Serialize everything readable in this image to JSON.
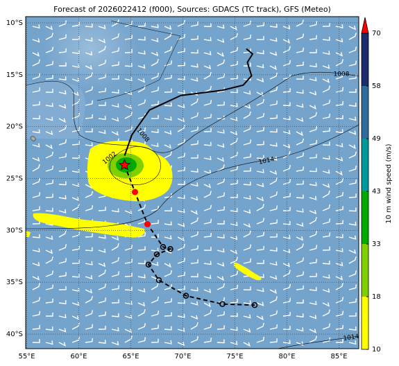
{
  "chart_data": {
    "type": "map",
    "title": "Forecast of 2026022412 (f000), Sources: GDACS (TC track), GFS (Meteo)",
    "xlim": [
      54.9,
      86.9
    ],
    "ylim": [
      -41.4,
      -9.4
    ],
    "xticks": [
      {
        "value": 55,
        "label": "55°E"
      },
      {
        "value": 60,
        "label": "60°E"
      },
      {
        "value": 65,
        "label": "65°E"
      },
      {
        "value": 70,
        "label": "70°E"
      },
      {
        "value": 75,
        "label": "75°E"
      },
      {
        "value": 80,
        "label": "80°E"
      },
      {
        "value": 85,
        "label": "85°E"
      }
    ],
    "yticks": [
      {
        "value": -10,
        "label": "10°S"
      },
      {
        "value": -15,
        "label": "15°S"
      },
      {
        "value": -20,
        "label": "20°S"
      },
      {
        "value": -25,
        "label": "25°S"
      },
      {
        "value": -30,
        "label": "30°S"
      },
      {
        "value": -35,
        "label": "35°S"
      },
      {
        "value": -40,
        "label": "40°S"
      }
    ],
    "grid": true,
    "past_track": {
      "color": "#000000",
      "lon": [
        64.4,
        65.1,
        66.8,
        69.8,
        73.8,
        75.8,
        76.6,
        76.2,
        76.7,
        76.1
      ],
      "lat": [
        -22.8,
        -20.8,
        -18.4,
        -17.0,
        -16.5,
        -16.0,
        -15.1,
        -13.8,
        -13.0,
        -12.5
      ]
    },
    "forecast_track": {
      "color": "#000000",
      "lon": [
        64.4,
        65.4,
        66.6,
        68.1,
        68.8,
        67.5,
        66.7,
        67.7,
        70.3,
        73.8,
        76.9
      ],
      "lat": [
        -23.7,
        -26.3,
        -29.4,
        -31.6,
        -31.8,
        -32.3,
        -33.3,
        -34.8,
        -36.3,
        -37.1,
        -37.2
      ],
      "markers": [
        "star",
        "dot",
        "dot",
        "circle",
        "circle",
        "circle",
        "circle",
        "circle",
        "circle",
        "circle",
        "circle"
      ],
      "marker_color": "#ff0000"
    },
    "isobar_labels": [
      "1008",
      "1008",
      "1002",
      "1014",
      "1014"
    ],
    "colorbar": {
      "label": "10 m wind speed (m/s)",
      "ticks": [
        10,
        18,
        33,
        43,
        49,
        58,
        70
      ],
      "colors": [
        "#ffff00",
        "#7fd000",
        "#00ab00",
        "#00999a",
        "#2f6c9e",
        "#1c2a6e"
      ],
      "extend_color": "#ff0000"
    }
  }
}
